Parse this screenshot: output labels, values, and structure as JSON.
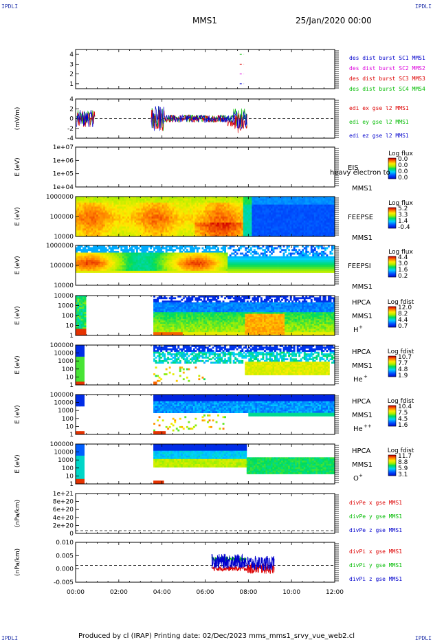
{
  "header": {
    "corner_tl": "IPDLI",
    "corner_tr": "IPDLI",
    "corner_bl": "IPDLI",
    "corner_br": "IPDLI",
    "spacecraft": "MMS1",
    "datetime": "25/Jan/2020 00:00"
  },
  "footer": {
    "text": "Produced by cl (IRAP)   Printing date: 02/Dec/2023   mms_mms1_srvy_vue_web2.cl"
  },
  "colors": {
    "blue": "#0000cc",
    "green": "#00bb00",
    "red": "#dd0000",
    "magenta": "#dd00dd"
  },
  "chart_data": [
    {
      "type": "scatter",
      "id": "burst",
      "x": {
        "label": "",
        "range_hours": [
          0,
          12
        ],
        "ticks": [
          "00:00",
          "02:00",
          "04:00",
          "06:00",
          "08:00",
          "10:00",
          "12:00"
        ]
      },
      "ylabel": "",
      "ylim": [
        0.5,
        4.5
      ],
      "yticks": [
        "1",
        "2",
        "3",
        "4"
      ],
      "legend": [
        {
          "text": "des dist burst SC1 MMS1",
          "color": "#0000cc"
        },
        {
          "text": "des dist burst SC2 MMS2",
          "color": "#dd00dd"
        },
        {
          "text": "des dist burst SC3 MMS3",
          "color": "#dd0000"
        },
        {
          "text": "des dist burst SC4 MMS4",
          "color": "#00bb00"
        }
      ],
      "series": [
        {
          "name": "des dist burst SC1 MMS1",
          "color": "#0000cc",
          "y": 1,
          "x_hours": [
            7.6,
            7.8
          ]
        },
        {
          "name": "des dist burst SC2 MMS2",
          "color": "#dd00dd",
          "y": 2,
          "x_hours": [
            7.6,
            7.8
          ]
        },
        {
          "name": "des dist burst SC3 MMS3",
          "color": "#dd0000",
          "y": 3,
          "x_hours": [
            7.6,
            7.8
          ]
        },
        {
          "name": "des dist burst SC4 MMS4",
          "color": "#00bb00",
          "y": 4,
          "x_hours": [
            7.6,
            7.8
          ]
        }
      ]
    },
    {
      "type": "line",
      "id": "edi",
      "ylabel": "(mV/m)",
      "ylim": [
        -5,
        5
      ],
      "yticks": [
        "4",
        "2",
        "0",
        "-2",
        "-4"
      ],
      "legend": [
        {
          "text": "edi ex gse l2 MMS1",
          "color": "#dd0000"
        },
        {
          "text": "edi ey gse l2 MMS1",
          "color": "#00bb00"
        },
        {
          "text": "edi ez gse l2 MMS1",
          "color": "#0000cc"
        }
      ],
      "intervals_hours": [
        [
          0.05,
          0.9
        ],
        [
          3.5,
          7.95
        ]
      ],
      "zero_line": true
    },
    {
      "type": "heatmap",
      "id": "eis",
      "ylabel": "E (eV)",
      "yticks": [
        "1e+07",
        "1e+06",
        "1e+05",
        "1e+04"
      ],
      "right_label": "EIS",
      "overlay_text": "heavy electron to",
      "sc_label": "MMS1",
      "colorbar": {
        "title": "Log flux",
        "ticks": [
          "0.0",
          "0.0",
          "0.0",
          "0.0"
        ]
      }
    },
    {
      "type": "heatmap",
      "id": "feepse",
      "ylabel": "E (eV)",
      "yticks": [
        "1000000",
        "100000",
        "10000"
      ],
      "right_label": "FEEPSE",
      "sc_label": "MMS1",
      "colorbar": {
        "title": "Log flux",
        "ticks": [
          "5.2",
          "3.3",
          "1.4",
          "-0.4"
        ]
      }
    },
    {
      "type": "heatmap",
      "id": "feepsi",
      "ylabel": "E (eV)",
      "yticks": [
        "1000000",
        "100000",
        "10000"
      ],
      "right_label": "FEEPSI",
      "sc_label": "MMS1",
      "colorbar": {
        "title": "Log flux",
        "ticks": [
          "4.4",
          "3.0",
          "1.6",
          "0.2"
        ]
      }
    },
    {
      "type": "heatmap",
      "id": "hpca_h",
      "ylabel": "E (eV)",
      "yticks": [
        "10000",
        "1000",
        "100",
        "10",
        "1"
      ],
      "right_label": "HPCA",
      "sc_label": "MMS1",
      "species": "H",
      "charge": "+",
      "colorbar": {
        "title": "Log fdist",
        "ticks": [
          "12.0",
          "8.2",
          "4.4",
          "0.7"
        ]
      }
    },
    {
      "type": "heatmap",
      "id": "hpca_he",
      "ylabel": "E (eV)",
      "yticks": [
        "100000",
        "10000",
        "1000",
        "100",
        "10",
        "1"
      ],
      "right_label": "HPCA",
      "sc_label": "MMS1",
      "species": "He",
      "charge": "+",
      "colorbar": {
        "title": "Log fdist",
        "ticks": [
          "10.7",
          "7.7",
          "4.8",
          "1.9"
        ]
      }
    },
    {
      "type": "heatmap",
      "id": "hpca_he2",
      "ylabel": "E (eV)",
      "yticks": [
        "100000",
        "10000",
        "1000",
        "100",
        "10",
        "1"
      ],
      "right_label": "HPCA",
      "sc_label": "MMS1",
      "species": "He",
      "charge": "++",
      "colorbar": {
        "title": "Log fdist",
        "ticks": [
          "10.4",
          "7.5",
          "4.5",
          "1.6"
        ]
      }
    },
    {
      "type": "heatmap",
      "id": "hpca_o",
      "ylabel": "E (eV)",
      "yticks": [
        "100000",
        "10000",
        "1000",
        "100",
        "10",
        "1"
      ],
      "right_label": "HPCA",
      "sc_label": "MMS1",
      "species": "O",
      "charge": "+",
      "colorbar": {
        "title": "Log fdist",
        "ticks": [
          "11.7",
          "8.8",
          "5.9",
          "3.1"
        ]
      }
    },
    {
      "type": "line",
      "id": "divpe",
      "ylabel": "(nPa/km)",
      "ylim": [
        0,
        1.1e+21
      ],
      "yticks": [
        "1e+21",
        "8e+20",
        "6e+20",
        "4e+20",
        "2e+20",
        "0"
      ],
      "legend": [
        {
          "text": "divPe x gse MMS1",
          "color": "#dd0000"
        },
        {
          "text": "divPe y gse MMS1",
          "color": "#00bb00"
        },
        {
          "text": "divPe z gse MMS1",
          "color": "#0000cc"
        }
      ],
      "zero_line": true
    },
    {
      "type": "line",
      "id": "divpi",
      "ylabel": "(nPa/km)",
      "ylim": [
        -0.008,
        0.011
      ],
      "yticks": [
        "0.010",
        "0.005",
        "0.000",
        "-0.005"
      ],
      "legend": [
        {
          "text": "divPi x gse MMS1",
          "color": "#dd0000"
        },
        {
          "text": "divPi y gse MMS1",
          "color": "#00bb00"
        },
        {
          "text": "divPi z gse MMS1",
          "color": "#0000cc"
        }
      ],
      "zero_line": true,
      "series": [
        {
          "name": "divPi x gse MMS1",
          "color": "#dd0000",
          "x_range_hours": [
            6.3,
            9.2
          ],
          "level": -0.0015
        },
        {
          "name": "divPi y gse MMS1",
          "color": "#00bb00",
          "x_range_hours": [
            6.3,
            7.9
          ],
          "level": 0.003
        },
        {
          "name": "divPi z gse MMS1",
          "color": "#0000cc",
          "x_range_hours": [
            6.3,
            9.2
          ],
          "level": 0.002
        }
      ],
      "x": {
        "range_hours": [
          0,
          12
        ],
        "ticks": [
          "00:00",
          "02:00",
          "04:00",
          "06:00",
          "08:00",
          "10:00",
          "12:00"
        ]
      }
    }
  ]
}
